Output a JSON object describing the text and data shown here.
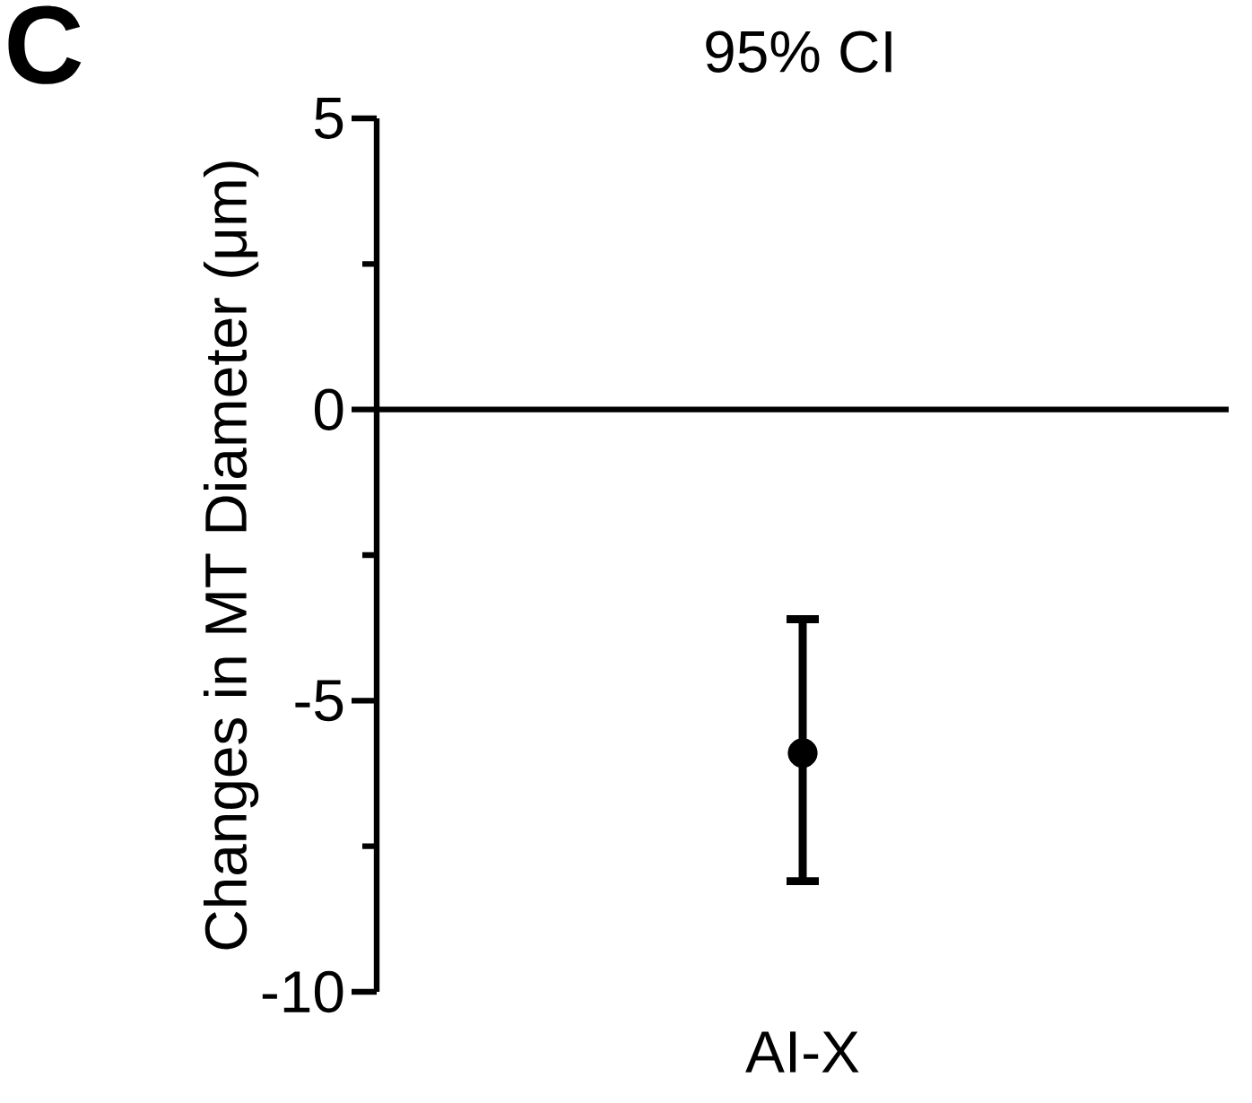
{
  "chart_data": {
    "type": "scatter",
    "ylabel": "Changes in MT Diameter (μm)",
    "annotations": [
      "C",
      "95% CI"
    ],
    "categories": [
      "AI-X"
    ],
    "values": [
      -5.9
    ],
    "errors": [
      [
        -8.1,
        -3.6
      ]
    ],
    "color": "#000000",
    "marker": "circle",
    "ylim": [
      -10,
      5
    ],
    "yticks": [
      -10,
      {
        "value": -7.5,
        "label": null
      },
      -5,
      {
        "value": -2.5,
        "label": null
      },
      0,
      {
        "value": 2.5,
        "label": null
      },
      5
    ],
    "ref_lines": [
      {
        "axis": "y",
        "value": 0
      }
    ],
    "grid": false
  }
}
